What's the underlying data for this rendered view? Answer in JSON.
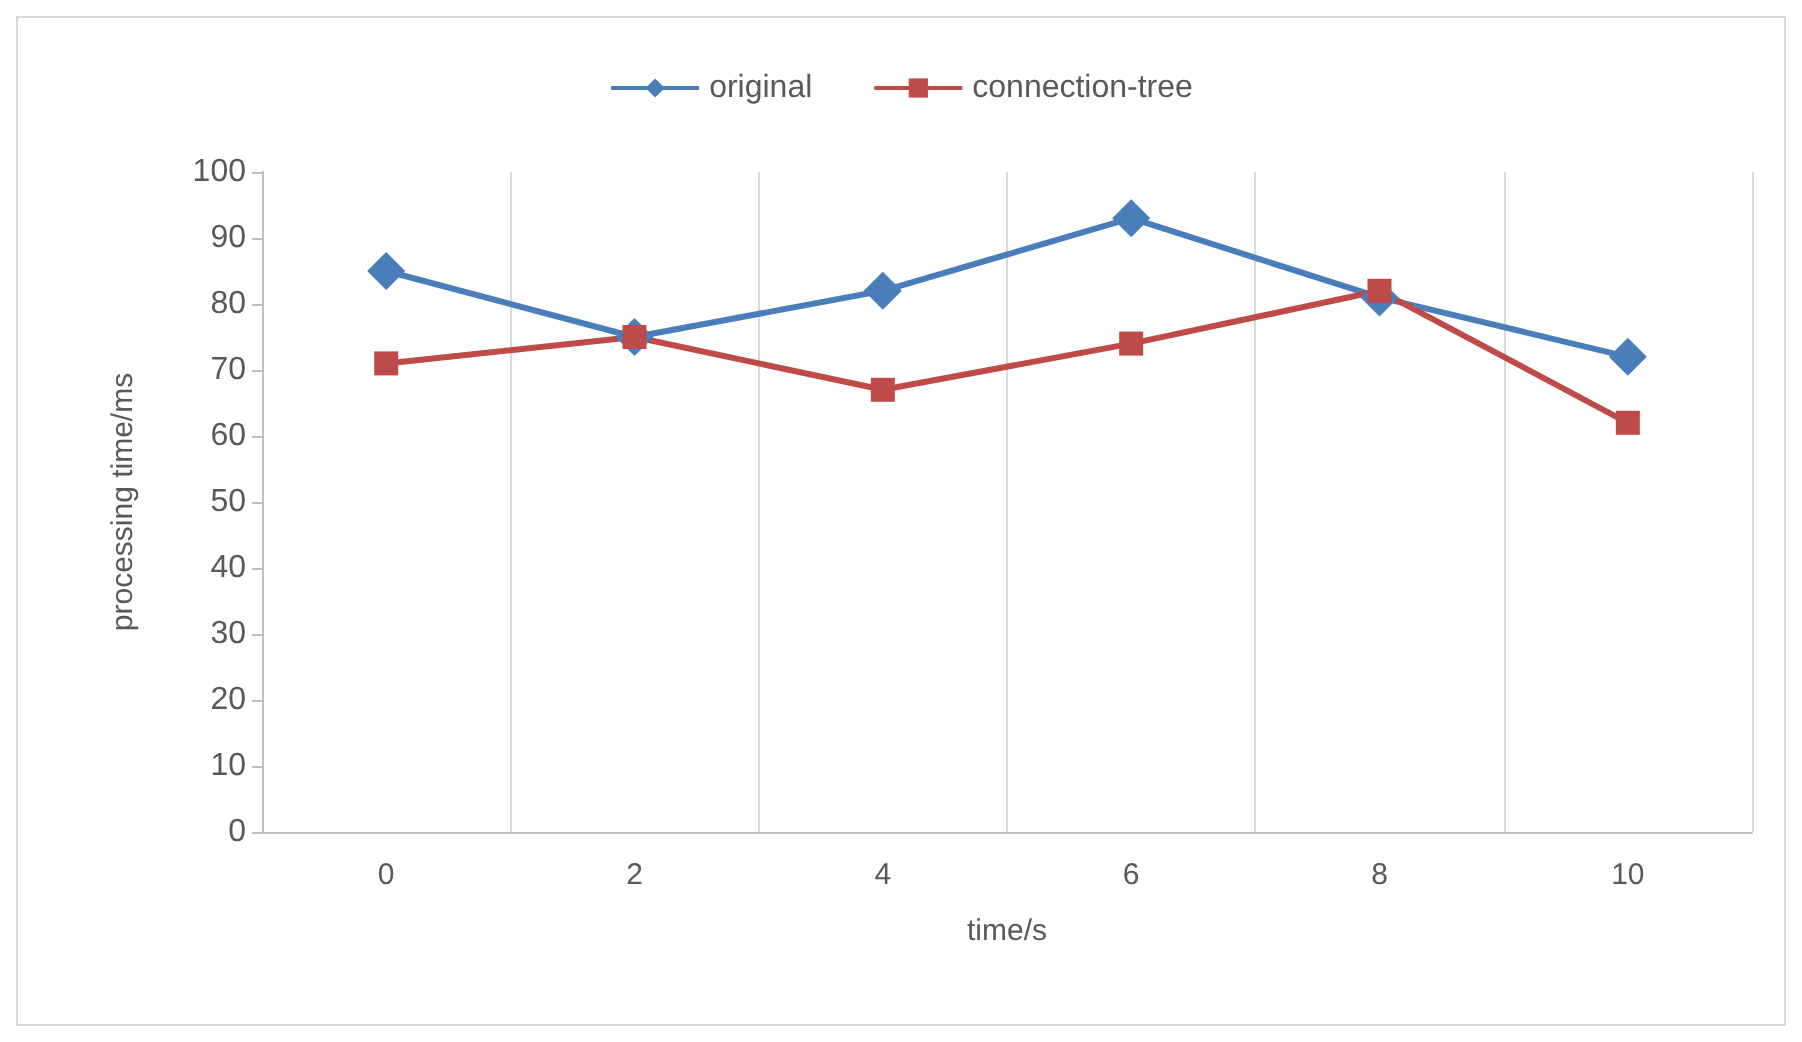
{
  "chart_data": {
    "type": "line",
    "xlabel": "time/s",
    "ylabel": "processing time/ms",
    "categories": [
      "0",
      "2",
      "4",
      "6",
      "8",
      "10"
    ],
    "series": [
      {
        "name": "original",
        "color": "#4a7ebb",
        "marker": "diamond",
        "values": [
          85,
          75,
          82,
          93,
          81,
          72
        ]
      },
      {
        "name": "connection-tree",
        "color": "#be4b48",
        "marker": "square",
        "values": [
          71,
          75,
          67,
          74,
          82,
          62
        ]
      }
    ],
    "ylim": [
      0,
      100
    ],
    "yticks": [
      0,
      10,
      20,
      30,
      40,
      50,
      60,
      70,
      80,
      90,
      100
    ],
    "grid": "x",
    "legend": "top",
    "line_style": "solid"
  }
}
